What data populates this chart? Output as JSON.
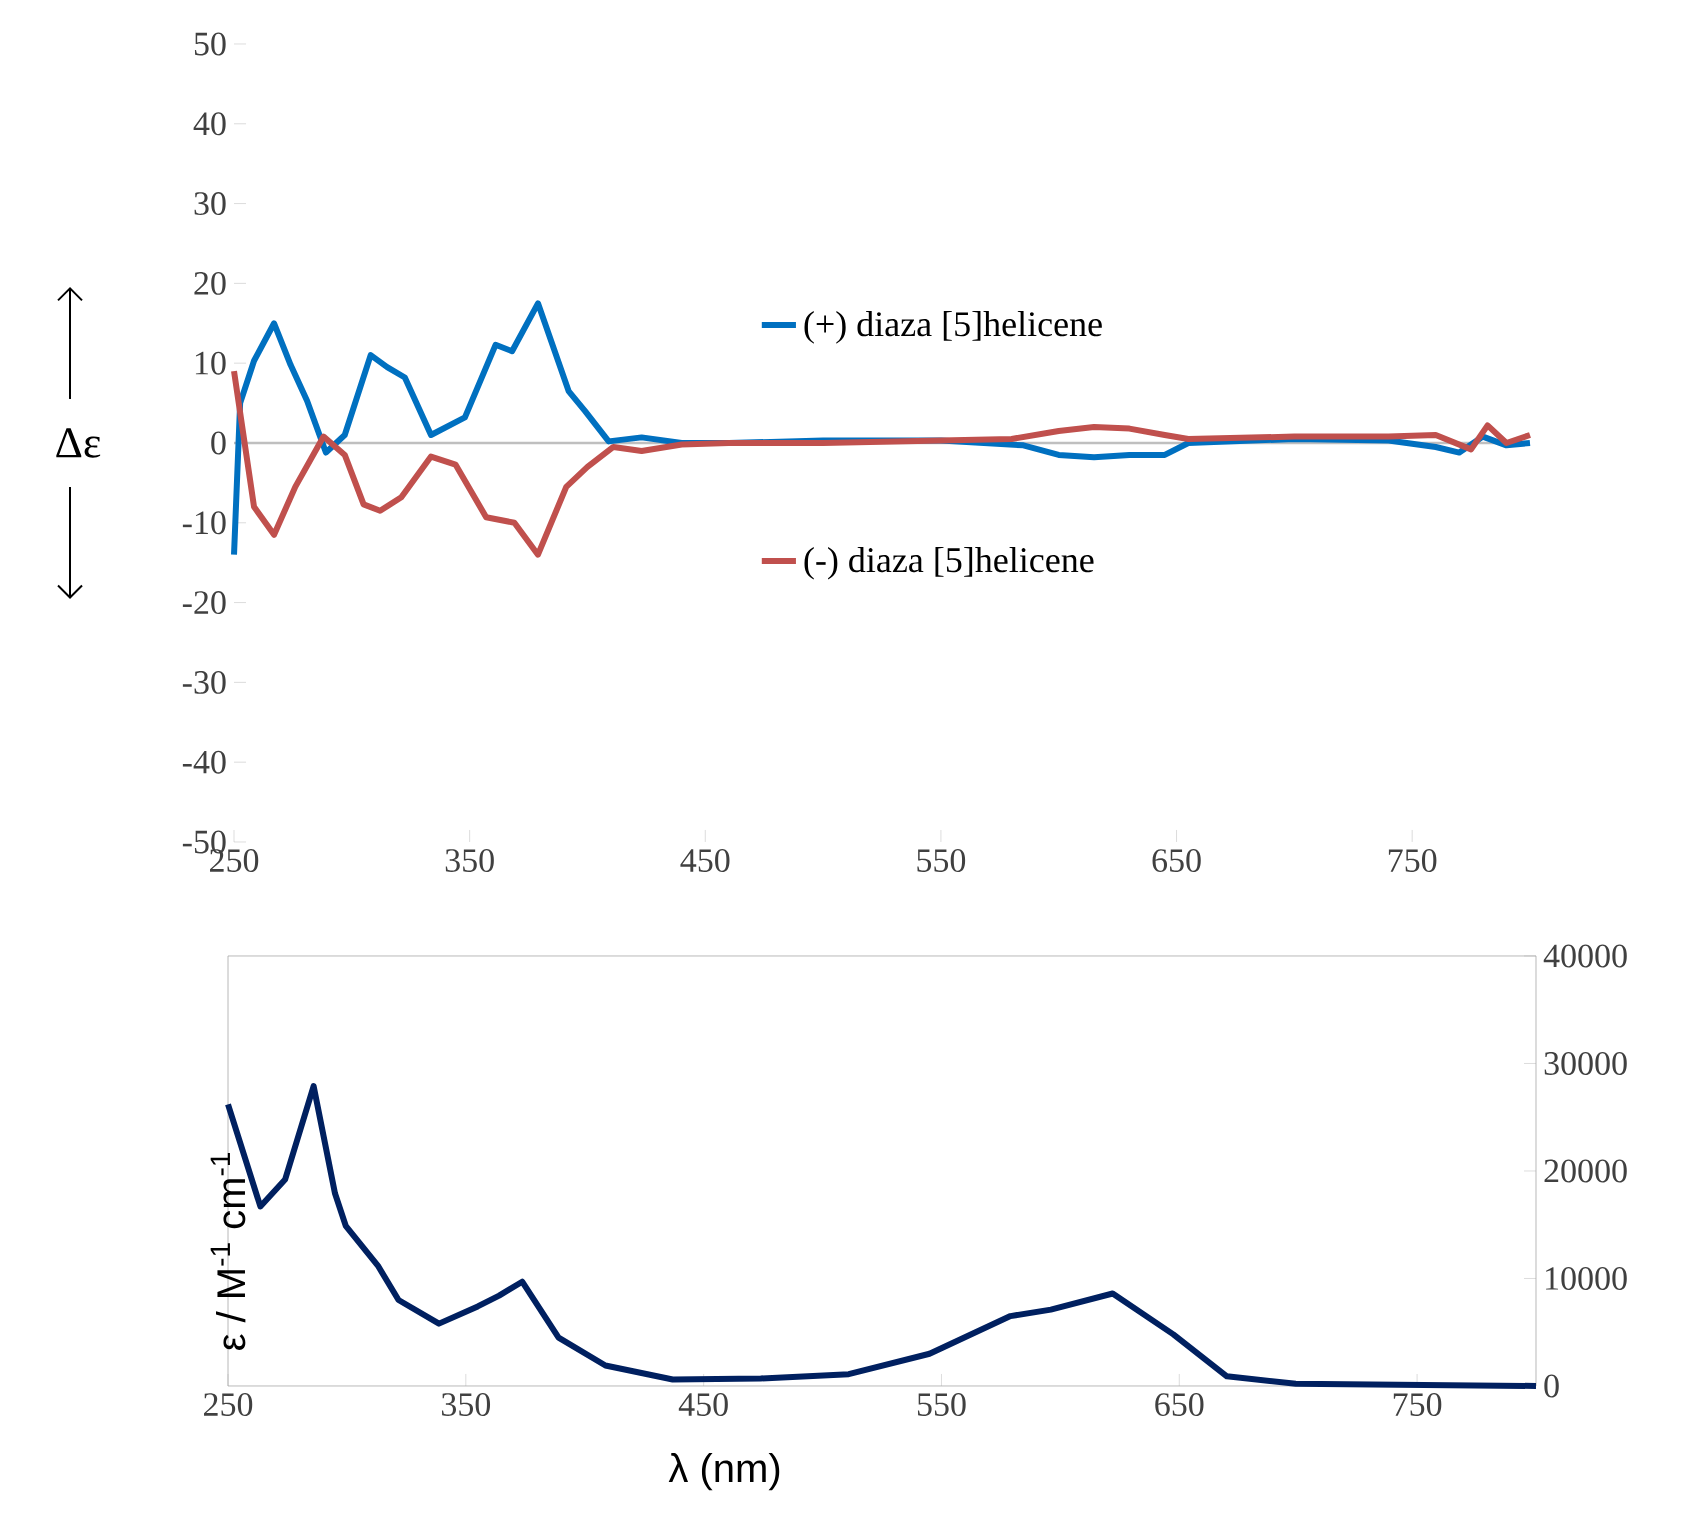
{
  "chart_data": [
    {
      "type": "line",
      "ylabel": "Δε",
      "xlim": [
        250,
        800
      ],
      "xticks": [
        250,
        350,
        450,
        550,
        650,
        750
      ],
      "ylim": [
        -50,
        50
      ],
      "yticks": [
        -50,
        -40,
        -30,
        -20,
        -10,
        0,
        10,
        20,
        30,
        40,
        50
      ],
      "legend": "right",
      "series": [
        {
          "name": "(+) diaza [5]helicene",
          "color": "#0070c0",
          "x": [
            250,
            252.6,
            258.5,
            267,
            274,
            281,
            289,
            297,
            308,
            315,
            322.5,
            333.6,
            348,
            361,
            368,
            379,
            392,
            399,
            409,
            423,
            440,
            460,
            500,
            550,
            585,
            600,
            615,
            630,
            645,
            655,
            700,
            740,
            760,
            770,
            780,
            790,
            800
          ],
          "values": [
            -14,
            5,
            10.3,
            15,
            9.8,
            5.3,
            -1.2,
            1,
            11,
            9.5,
            8.2,
            1,
            3.2,
            12.3,
            11.5,
            17.5,
            6.5,
            4,
            0.2,
            0.7,
            0,
            0,
            0.3,
            0.3,
            -0.3,
            -1.5,
            -1.8,
            -1.5,
            -1.5,
            0,
            0.5,
            0.3,
            -0.5,
            -1.2,
            0.8,
            -0.3,
            0
          ]
        },
        {
          "name": "(-) diaza [5]helicene",
          "color": "#c0504d",
          "x": [
            250,
            258.5,
            267,
            276,
            288,
            297,
            305,
            312,
            321,
            333.6,
            344,
            357,
            369,
            379,
            391,
            400,
            411,
            423,
            440,
            460,
            500,
            550,
            580,
            600,
            615,
            630,
            645,
            655,
            700,
            740,
            760,
            775,
            782,
            790,
            800
          ],
          "values": [
            9,
            -8,
            -11.5,
            -5.5,
            0.8,
            -1.5,
            -7.7,
            -8.5,
            -6.8,
            -1.7,
            -2.7,
            -9.3,
            -10,
            -14,
            -5.5,
            -3,
            -0.5,
            -1,
            -0.2,
            0,
            0,
            0.3,
            0.5,
            1.5,
            2,
            1.8,
            1,
            0.5,
            0.8,
            0.8,
            1,
            -0.8,
            2.2,
            0,
            1
          ]
        }
      ]
    },
    {
      "type": "line",
      "xlabel": "λ (nm)",
      "ylabel": "ε / M$^{-1}$ cm$^{-1}$",
      "xlim": [
        250,
        800
      ],
      "xticks": [
        250,
        350,
        450,
        550,
        650,
        750
      ],
      "ylim": [
        0,
        40000
      ],
      "yticks": [
        0,
        10000,
        20000,
        30000,
        40000
      ],
      "series": [
        {
          "color": "#002060",
          "x": [
            250,
            263.6,
            274,
            286,
            295,
            299.5,
            313,
            321.7,
            338.7,
            355,
            364,
            373.7,
            389,
            408.7,
            437,
            474,
            511,
            545,
            579,
            596,
            622,
            647.5,
            670,
            699,
            800
          ],
          "values": [
            26200,
            16700,
            19200,
            27900,
            17900,
            14900,
            11200,
            8000,
            5800,
            7400,
            8400,
            9700,
            4500,
            1900,
            600,
            700,
            1100,
            3000,
            6500,
            7100,
            8600,
            4800,
            900,
            200,
            0
          ]
        }
      ]
    }
  ]
}
